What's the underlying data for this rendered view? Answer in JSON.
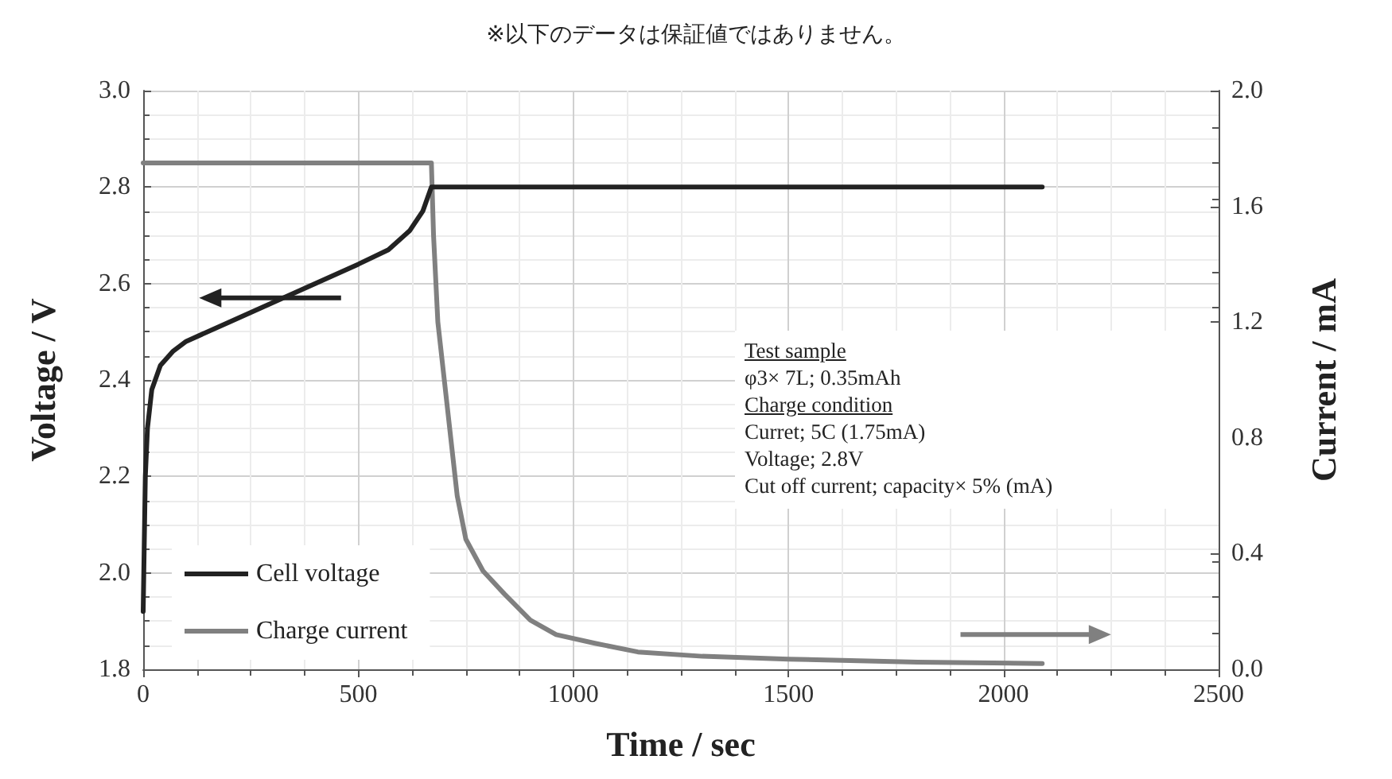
{
  "chart_data": {
    "type": "line",
    "title": "※以下のデータは保証値ではありません。",
    "xlabel": "Time / sec",
    "ylabel": "Voltage / V",
    "y2label": "Current / mA",
    "annotations": [
      "Test sample",
      "φ3× 7L; 0.35mAh",
      "Charge condition",
      "Curret; 5C (1.75mA)",
      "Voltage; 2.8V",
      "Cut off current; capacity× 5% (mA)"
    ],
    "series": [
      {
        "name": "Cell voltage",
        "color": "#222222",
        "x": [
          0,
          5,
          10,
          20,
          40,
          70,
          100,
          200,
          300,
          400,
          500,
          570,
          620,
          650,
          670,
          2090
        ],
        "values": [
          1.92,
          2.2,
          2.3,
          2.38,
          2.43,
          2.46,
          2.48,
          2.52,
          2.56,
          2.6,
          2.64,
          2.67,
          2.71,
          2.75,
          2.8,
          2.8
        ]
      },
      {
        "name": "Charge current",
        "color": "#808080",
        "axis": "y2",
        "x": [
          0,
          670,
          675,
          685,
          700,
          715,
          730,
          750,
          790,
          840,
          900,
          960,
          1050,
          1150,
          1300,
          1500,
          1800,
          2090
        ],
        "values": [
          1.75,
          1.75,
          1.5,
          1.2,
          1.0,
          0.8,
          0.6,
          0.45,
          0.34,
          0.26,
          0.17,
          0.12,
          0.09,
          0.06,
          0.045,
          0.035,
          0.025,
          0.02
        ]
      }
    ],
    "xlim": [
      0,
      2500
    ],
    "xticks": [
      0,
      500,
      1000,
      1500,
      2000,
      2500
    ],
    "ylim": [
      1.8,
      3.0
    ],
    "yticks": [
      1.8,
      {
        "value": 2,
        "label": "2.0"
      },
      2.2,
      2.4,
      2.6,
      2.8,
      {
        "value": 3,
        "label": "3.0"
      }
    ],
    "y2lim": [
      0,
      2.0
    ],
    "y2ticks": [
      {
        "value": 0,
        "label": "0.0"
      },
      0.4,
      0.8,
      1.2,
      1.6,
      {
        "value": 2,
        "label": "2.0"
      }
    ],
    "grid": true,
    "legend": "bottom left",
    "marker": "none",
    "line_style": "solid"
  }
}
